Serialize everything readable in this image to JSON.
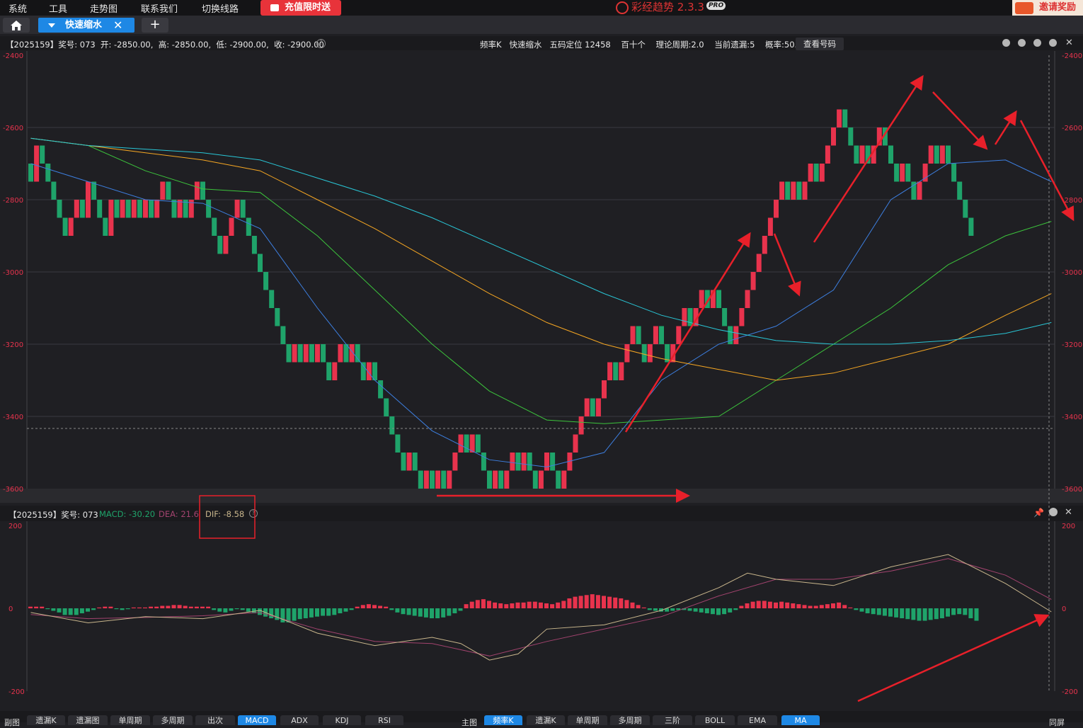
{
  "menu": [
    "系统",
    "工具",
    "走势图",
    "联系我们",
    "切换线路"
  ],
  "promo_label": "充值限时送",
  "brand": {
    "name": "彩经趋势 2.3.3",
    "badge": "PRO"
  },
  "invite_label": "邀请奖励",
  "tab": {
    "label": "快速缩水"
  },
  "info": {
    "left": "【2025159】奖号: 073  开: -2850.00,  高: -2850.00,  低: -2900.00,  收: -2900.00",
    "right": "频率K   快速缩水   五码定位 12458    百十个    理论周期:2.0    当前遗漏:5    概率:50.0%",
    "button": "查看号码"
  },
  "main_axis": {
    "labels": [
      "-2400",
      "-2600",
      "-2800",
      "-3000",
      "-3200",
      "-3400",
      "-3600"
    ]
  },
  "macd_axis": {
    "labels": [
      "200",
      "0",
      "-200"
    ]
  },
  "macd_bar": {
    "prefix": "【2025159】奖号: 073",
    "macd": "MACD: -30.20",
    "dea": "DEA: 21.6",
    "dif": "DIF: -8.58"
  },
  "bottom_left_label": "副图",
  "bottom_left_tabs": [
    "遗漏K",
    "遗漏图",
    "单周期",
    "多周期",
    "出次",
    "MACD",
    "ADX",
    "KDJ",
    "RSI"
  ],
  "bottom_right_label": "主图",
  "bottom_right_tabs": [
    "频率K",
    "遗漏K",
    "单周期",
    "多周期",
    "三阶",
    "BOLL",
    "EMA",
    "MA"
  ],
  "bottom_far_right": "同屏",
  "colors": {
    "up": "#e8334d",
    "down": "#1fa36a",
    "ma5": "#3d7fe0",
    "ma10": "#3cc43c",
    "ma20": "#f5a623",
    "ma30": "#29c6d6",
    "annotation": "#e8202a"
  },
  "chart_data": [
    {
      "type": "candlestick",
      "ylim": [
        -3600,
        -2400
      ],
      "close": [
        -2750,
        -2650,
        -2700,
        -2750,
        -2800,
        -2850,
        -2900,
        -2850,
        -2800,
        -2850,
        -2750,
        -2800,
        -2850,
        -2900,
        -2800,
        -2850,
        -2800,
        -2850,
        -2800,
        -2850,
        -2800,
        -2850,
        -2800,
        -2750,
        -2800,
        -2850,
        -2800,
        -2850,
        -2800,
        -2750,
        -2800,
        -2850,
        -2900,
        -2950,
        -2900,
        -2850,
        -2800,
        -2850,
        -2900,
        -2950,
        -3000,
        -3050,
        -3100,
        -3150,
        -3200,
        -3250,
        -3200,
        -3250,
        -3200,
        -3250,
        -3200,
        -3250,
        -3300,
        -3250,
        -3200,
        -3250,
        -3200,
        -3250,
        -3300,
        -3250,
        -3300,
        -3350,
        -3400,
        -3450,
        -3500,
        -3550,
        -3500,
        -3550,
        -3600,
        -3550,
        -3600,
        -3550,
        -3600,
        -3550,
        -3500,
        -3450,
        -3500,
        -3450,
        -3500,
        -3550,
        -3600,
        -3550,
        -3600,
        -3550,
        -3500,
        -3550,
        -3500,
        -3550,
        -3600,
        -3550,
        -3500,
        -3550,
        -3600,
        -3550,
        -3500,
        -3450,
        -3400,
        -3350,
        -3400,
        -3350,
        -3300,
        -3250,
        -3300,
        -3250,
        -3200,
        -3150,
        -3200,
        -3250,
        -3200,
        -3150,
        -3200,
        -3250,
        -3200,
        -3150,
        -3100,
        -3150,
        -3100,
        -3050,
        -3100,
        -3050,
        -3100,
        -3150,
        -3200,
        -3150,
        -3100,
        -3050,
        -3000,
        -2950,
        -2900,
        -2850,
        -2800,
        -2750,
        -2800,
        -2750,
        -2800,
        -2750,
        -2700,
        -2750,
        -2700,
        -2650,
        -2600,
        -2550,
        -2600,
        -2650,
        -2700,
        -2650,
        -2700,
        -2650,
        -2600,
        -2650,
        -2700,
        -2750,
        -2700,
        -2750,
        -2800,
        -2750,
        -2700,
        -2650,
        -2700,
        -2650,
        -2700,
        -2750,
        -2800,
        -2850,
        -2900
      ],
      "ma_series": [
        {
          "key": "ma5",
          "points": [
            [
              0,
              -2700
            ],
            [
              10,
              -2750
            ],
            [
              20,
              -2800
            ],
            [
              30,
              -2810
            ],
            [
              40,
              -2880
            ],
            [
              50,
              -3100
            ],
            [
              60,
              -3300
            ],
            [
              70,
              -3440
            ],
            [
              80,
              -3520
            ],
            [
              90,
              -3540
            ],
            [
              100,
              -3500
            ],
            [
              110,
              -3300
            ],
            [
              120,
              -3200
            ],
            [
              130,
              -3150
            ],
            [
              140,
              -3050
            ],
            [
              150,
              -2800
            ],
            [
              160,
              -2700
            ],
            [
              170,
              -2690
            ],
            [
              178,
              -2750
            ]
          ]
        },
        {
          "key": "ma10",
          "points": [
            [
              0,
              -2630
            ],
            [
              10,
              -2650
            ],
            [
              20,
              -2720
            ],
            [
              30,
              -2770
            ],
            [
              40,
              -2780
            ],
            [
              50,
              -2900
            ],
            [
              60,
              -3050
            ],
            [
              70,
              -3200
            ],
            [
              80,
              -3330
            ],
            [
              90,
              -3410
            ],
            [
              100,
              -3420
            ],
            [
              110,
              -3410
            ],
            [
              120,
              -3400
            ],
            [
              130,
              -3300
            ],
            [
              140,
              -3200
            ],
            [
              150,
              -3100
            ],
            [
              160,
              -2980
            ],
            [
              170,
              -2900
            ],
            [
              178,
              -2860
            ]
          ]
        },
        {
          "key": "ma20",
          "points": [
            [
              0,
              -2630
            ],
            [
              10,
              -2650
            ],
            [
              20,
              -2670
            ],
            [
              30,
              -2690
            ],
            [
              40,
              -2720
            ],
            [
              50,
              -2800
            ],
            [
              60,
              -2880
            ],
            [
              70,
              -2970
            ],
            [
              80,
              -3060
            ],
            [
              90,
              -3140
            ],
            [
              100,
              -3200
            ],
            [
              110,
              -3240
            ],
            [
              120,
              -3270
            ],
            [
              130,
              -3300
            ],
            [
              140,
              -3280
            ],
            [
              150,
              -3240
            ],
            [
              160,
              -3200
            ],
            [
              170,
              -3120
            ],
            [
              178,
              -3060
            ]
          ]
        },
        {
          "key": "ma30",
          "points": [
            [
              0,
              -2630
            ],
            [
              10,
              -2650
            ],
            [
              20,
              -2660
            ],
            [
              30,
              -2670
            ],
            [
              40,
              -2690
            ],
            [
              50,
              -2740
            ],
            [
              60,
              -2790
            ],
            [
              70,
              -2850
            ],
            [
              80,
              -2920
            ],
            [
              90,
              -2990
            ],
            [
              100,
              -3060
            ],
            [
              110,
              -3120
            ],
            [
              120,
              -3160
            ],
            [
              130,
              -3190
            ],
            [
              140,
              -3200
            ],
            [
              150,
              -3200
            ],
            [
              160,
              -3190
            ],
            [
              170,
              -3170
            ],
            [
              178,
              -3140
            ]
          ]
        }
      ]
    },
    {
      "type": "macd",
      "ylim": [
        -200,
        200
      ],
      "histogram": [
        4,
        4,
        4,
        -2,
        -6,
        -10,
        -16,
        -16,
        -16,
        -12,
        -8,
        -4,
        2,
        4,
        4,
        -2,
        -4,
        -2,
        2,
        2,
        2,
        4,
        4,
        6,
        6,
        8,
        8,
        6,
        4,
        4,
        4,
        4,
        -4,
        -8,
        -10,
        -6,
        -2,
        -4,
        -8,
        -12,
        -16,
        -20,
        -24,
        -28,
        -34,
        -34,
        -30,
        -26,
        -24,
        -22,
        -20,
        -18,
        -18,
        -16,
        -12,
        -8,
        -4,
        4,
        8,
        10,
        8,
        6,
        4,
        -4,
        -10,
        -14,
        -16,
        -18,
        -20,
        -22,
        -24,
        -24,
        -22,
        -18,
        -12,
        -6,
        10,
        16,
        20,
        22,
        18,
        14,
        12,
        10,
        12,
        14,
        14,
        16,
        16,
        14,
        12,
        10,
        14,
        18,
        24,
        28,
        30,
        32,
        34,
        32,
        30,
        28,
        26,
        24,
        20,
        14,
        8,
        2,
        -4,
        -6,
        -8,
        -8,
        -6,
        -4,
        -4,
        -6,
        -8,
        -10,
        -12,
        -14,
        -16,
        -14,
        -10,
        -4,
        6,
        12,
        16,
        18,
        18,
        16,
        14,
        16,
        14,
        12,
        10,
        8,
        6,
        6,
        8,
        10,
        12,
        14,
        8,
        2,
        -4,
        -8,
        -12,
        -14,
        -16,
        -18,
        -20,
        -22,
        -24,
        -26,
        -28,
        -30,
        -30,
        -28,
        -26,
        -24,
        -20,
        -16,
        -14,
        -16,
        -24,
        -30
      ],
      "dif": [
        [
          0,
          -10
        ],
        [
          10,
          -35
        ],
        [
          20,
          -20
        ],
        [
          30,
          -25
        ],
        [
          40,
          -5
        ],
        [
          50,
          -60
        ],
        [
          60,
          -90
        ],
        [
          70,
          -70
        ],
        [
          75,
          -85
        ],
        [
          80,
          -125
        ],
        [
          85,
          -110
        ],
        [
          90,
          -50
        ],
        [
          100,
          -40
        ],
        [
          110,
          -5
        ],
        [
          120,
          50
        ],
        [
          125,
          85
        ],
        [
          130,
          70
        ],
        [
          140,
          55
        ],
        [
          150,
          100
        ],
        [
          160,
          130
        ],
        [
          170,
          60
        ],
        [
          178,
          -8.58
        ]
      ],
      "dea": [
        [
          0,
          -15
        ],
        [
          10,
          -25
        ],
        [
          20,
          -22
        ],
        [
          30,
          -18
        ],
        [
          40,
          -10
        ],
        [
          50,
          -50
        ],
        [
          60,
          -80
        ],
        [
          70,
          -85
        ],
        [
          80,
          -115
        ],
        [
          90,
          -80
        ],
        [
          100,
          -50
        ],
        [
          110,
          -20
        ],
        [
          120,
          30
        ],
        [
          130,
          70
        ],
        [
          140,
          70
        ],
        [
          150,
          90
        ],
        [
          160,
          120
        ],
        [
          170,
          80
        ],
        [
          178,
          21.6
        ]
      ]
    }
  ]
}
